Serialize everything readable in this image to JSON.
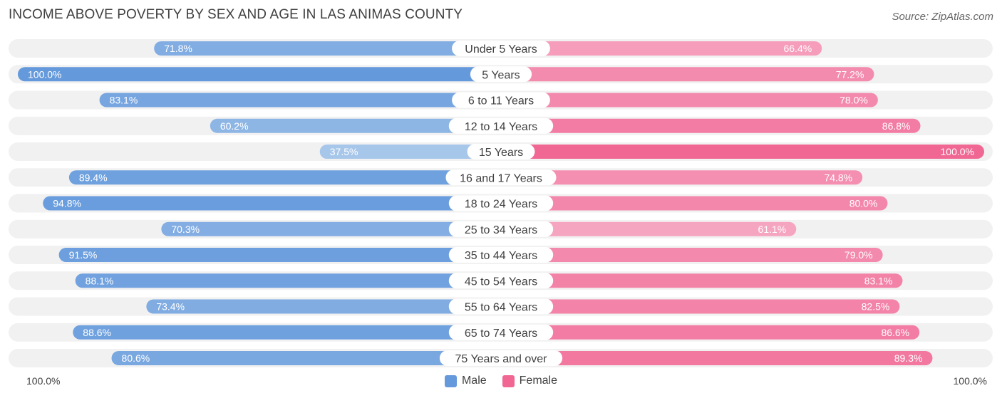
{
  "chart_data": {
    "type": "bar",
    "title": "INCOME ABOVE POVERTY BY SEX AND AGE IN LAS ANIMAS COUNTY",
    "source": "Source: ZipAtlas.com",
    "categories": [
      "Under 5 Years",
      "5 Years",
      "6 to 11 Years",
      "12 to 14 Years",
      "15 Years",
      "16 and 17 Years",
      "18 to 24 Years",
      "25 to 34 Years",
      "35 to 44 Years",
      "45 to 54 Years",
      "55 to 64 Years",
      "65 to 74 Years",
      "75 Years and over"
    ],
    "series": [
      {
        "name": "Male",
        "values": [
          71.8,
          100.0,
          83.1,
          60.2,
          37.5,
          89.4,
          94.8,
          70.3,
          91.5,
          88.1,
          73.4,
          88.6,
          80.6
        ],
        "labels": [
          "71.8%",
          "100.0%",
          "83.1%",
          "60.2%",
          "37.5%",
          "89.4%",
          "94.8%",
          "70.3%",
          "91.5%",
          "88.1%",
          "73.4%",
          "88.6%",
          "80.6%"
        ]
      },
      {
        "name": "Female",
        "values": [
          66.4,
          77.2,
          78.0,
          86.8,
          100.0,
          74.8,
          80.0,
          61.1,
          79.0,
          83.1,
          82.5,
          86.6,
          89.3
        ],
        "labels": [
          "66.4%",
          "77.2%",
          "78.0%",
          "86.8%",
          "100.0%",
          "74.8%",
          "80.0%",
          "61.1%",
          "79.0%",
          "83.1%",
          "82.5%",
          "86.6%",
          "89.3%"
        ]
      }
    ],
    "xlim": [
      0,
      100
    ],
    "axis_left_label": "100.0%",
    "axis_right_label": "100.0%",
    "legend_position": "bottom-center"
  },
  "colors": {
    "male_light": "#a9c8eb",
    "male_dark": "#6499dc",
    "female_light": "#f6a7c2",
    "female_dark": "#f06793",
    "track": "#f1f1f1"
  }
}
